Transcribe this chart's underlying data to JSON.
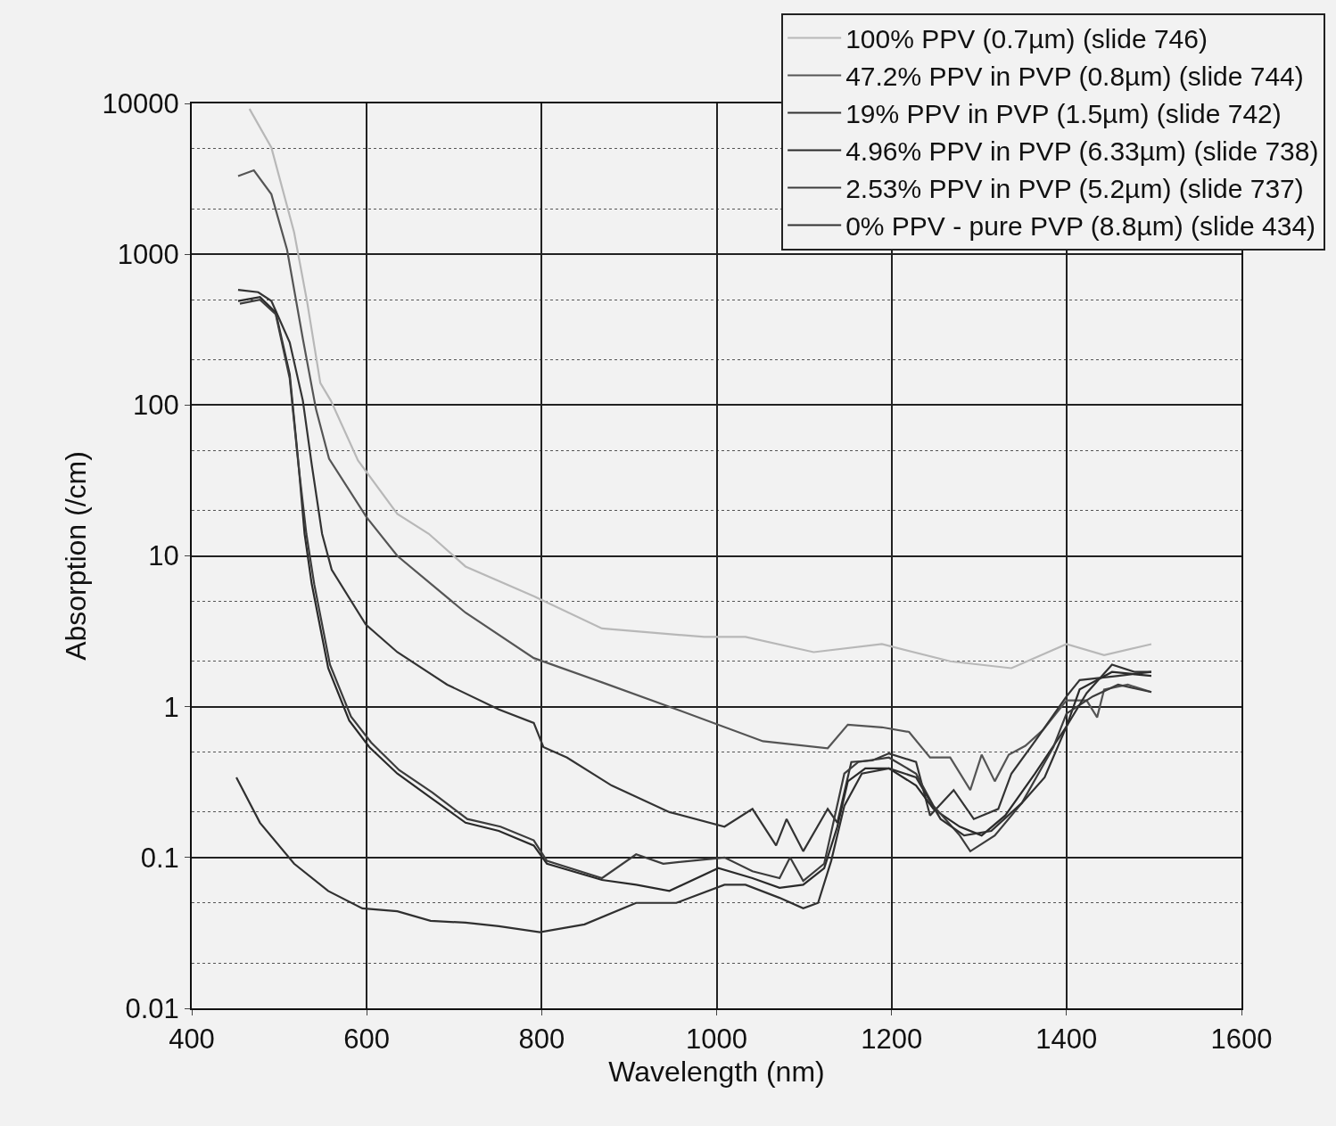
{
  "chart_data": {
    "type": "line",
    "xlabel": "Wavelength (nm)",
    "ylabel": "Absorption (/cm)",
    "xlim": [
      400,
      1600
    ],
    "xticks": [
      400,
      600,
      800,
      1000,
      1200,
      1400,
      1600
    ],
    "ylim": [
      0.01,
      10000
    ],
    "yticks": [
      0.01,
      0.1,
      1,
      10,
      100,
      1000,
      10000
    ],
    "log": "y",
    "grid": true,
    "legend": "top right",
    "marker": "none",
    "line_style": "solid",
    "series": [
      {
        "name": "100% PPV (0.7µm) (slide 746)",
        "color": "#b8b8b8",
        "x": [
          466,
          491,
          517,
          532,
          547,
          559,
          590,
          635,
          671,
          713,
          791,
          869,
          986,
          1033,
          1111,
          1189,
          1267,
          1337,
          1400,
          1443,
          1497
        ],
        "values": [
          9200,
          5100,
          1400,
          480,
          140,
          107,
          43,
          19,
          14,
          8.5,
          5.4,
          3.3,
          2.9,
          2.9,
          2.3,
          2.6,
          2.0,
          1.8,
          2.6,
          2.2,
          2.6
        ]
      },
      {
        "name": "47.2% PPV in PVP (0.8µm) (slide 744)",
        "color": "#555555",
        "x": [
          453,
          471,
          491,
          509,
          527,
          542,
          557,
          600,
          635,
          713,
          791,
          869,
          946,
          1053,
          1127,
          1150,
          1189,
          1220,
          1244,
          1267,
          1290,
          1303,
          1318,
          1334,
          1353,
          1373,
          1400,
          1423,
          1435,
          1443,
          1470,
          1497
        ],
        "values": [
          3300,
          3600,
          2500,
          1070,
          275,
          94,
          44,
          18,
          10,
          4.2,
          2.1,
          1.45,
          1.0,
          0.59,
          0.53,
          0.76,
          0.73,
          0.68,
          0.46,
          0.46,
          0.28,
          0.48,
          0.32,
          0.48,
          0.55,
          0.7,
          1.1,
          1.1,
          0.85,
          1.3,
          1.4,
          1.25
        ]
      },
      {
        "name": "19% PPV in PVP (1.5µm) (slide 742)",
        "color": "#333333",
        "x": [
          453,
          476,
          491,
          512,
          527,
          537,
          549,
          560,
          599,
          635,
          692,
          751,
          791,
          802,
          829,
          880,
          946,
          1009,
          1041,
          1068,
          1080,
          1099,
          1127,
          1138,
          1154,
          1178,
          1197,
          1228,
          1244,
          1271,
          1294,
          1322,
          1337,
          1364,
          1400,
          1415,
          1459,
          1497
        ],
        "values": [
          580,
          560,
          490,
          260,
          107,
          41,
          14,
          8.1,
          3.5,
          2.3,
          1.4,
          0.96,
          0.78,
          0.54,
          0.46,
          0.3,
          0.2,
          0.16,
          0.21,
          0.12,
          0.18,
          0.11,
          0.21,
          0.17,
          0.43,
          0.44,
          0.49,
          0.43,
          0.19,
          0.28,
          0.18,
          0.21,
          0.36,
          0.59,
          1.17,
          1.5,
          1.6,
          1.7
        ]
      },
      {
        "name": "4.96% PPV in PVP (6.33µm) (slide 738)",
        "color": "#2a2a2a",
        "x": [
          453,
          478,
          496,
          512,
          522,
          529,
          537,
          556,
          580,
          603,
          635,
          673,
          713,
          751,
          791,
          806,
          869,
          908,
          946,
          1002,
          1041,
          1072,
          1099,
          1123,
          1138,
          1150,
          1170,
          1197,
          1228,
          1248,
          1278,
          1303,
          1330,
          1364,
          1400,
          1415,
          1452,
          1497
        ],
        "values": [
          490,
          520,
          410,
          160,
          41,
          14,
          6.6,
          1.8,
          0.81,
          0.54,
          0.36,
          0.25,
          0.17,
          0.15,
          0.12,
          0.091,
          0.071,
          0.066,
          0.06,
          0.085,
          0.073,
          0.063,
          0.066,
          0.085,
          0.16,
          0.32,
          0.39,
          0.39,
          0.3,
          0.21,
          0.16,
          0.14,
          0.19,
          0.36,
          0.74,
          1.3,
          1.7,
          1.6
        ]
      },
      {
        "name": "2.53% PPV in PVP (5.2µm) (slide 737)",
        "color": "#3c3c3c",
        "x": [
          455,
          478,
          496,
          512,
          522,
          531,
          540,
          558,
          582,
          605,
          637,
          675,
          715,
          753,
          791,
          806,
          869,
          908,
          939,
          1009,
          1041,
          1072,
          1084,
          1099,
          1123,
          1146,
          1162,
          1197,
          1228,
          1248,
          1278,
          1290,
          1318,
          1349,
          1385,
          1400,
          1430,
          1459,
          1497
        ],
        "values": [
          470,
          500,
          400,
          150,
          40,
          14,
          6.5,
          1.9,
          0.86,
          0.58,
          0.38,
          0.27,
          0.18,
          0.16,
          0.13,
          0.095,
          0.073,
          0.105,
          0.091,
          0.1,
          0.081,
          0.073,
          0.1,
          0.07,
          0.091,
          0.36,
          0.43,
          0.46,
          0.36,
          0.22,
          0.14,
          0.11,
          0.14,
          0.23,
          0.54,
          0.9,
          1.17,
          1.4,
          1.25
        ]
      },
      {
        "name": "0% PPV - pure PVP (8.8µm) (slide 434)",
        "color": "#303030",
        "x": [
          451,
          478,
          517,
          556,
          595,
          635,
          673,
          713,
          751,
          798,
          849,
          908,
          954,
          1009,
          1033,
          1072,
          1099,
          1116,
          1131,
          1146,
          1166,
          1197,
          1228,
          1256,
          1283,
          1314,
          1349,
          1375,
          1400,
          1423,
          1452,
          1478,
          1497
        ],
        "values": [
          0.34,
          0.17,
          0.091,
          0.06,
          0.046,
          0.044,
          0.038,
          0.037,
          0.035,
          0.032,
          0.036,
          0.05,
          0.05,
          0.066,
          0.066,
          0.054,
          0.046,
          0.05,
          0.095,
          0.22,
          0.36,
          0.39,
          0.34,
          0.18,
          0.14,
          0.15,
          0.23,
          0.34,
          0.74,
          1.23,
          1.9,
          1.7,
          1.7
        ]
      }
    ]
  }
}
